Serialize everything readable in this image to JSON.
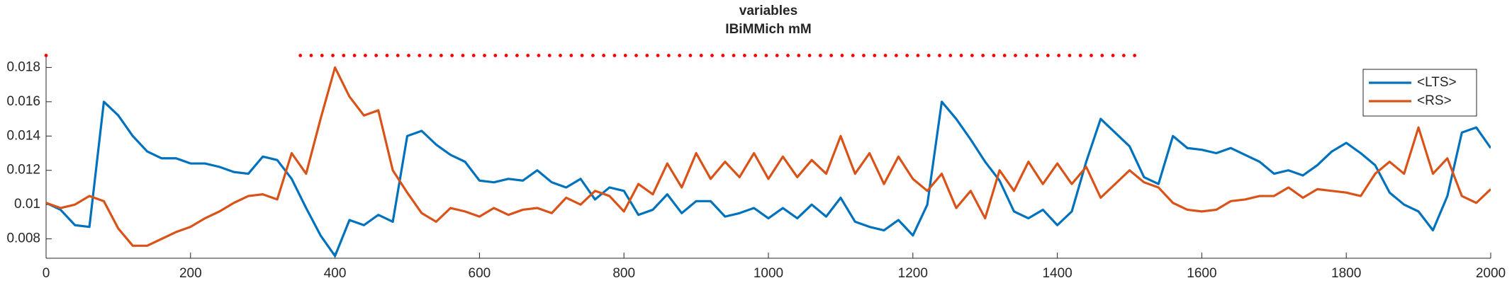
{
  "chart_data": {
    "type": "line",
    "title": "variables",
    "subtitle": "IBiMMich mM",
    "x": [
      0,
      20,
      40,
      60,
      80,
      100,
      120,
      140,
      160,
      180,
      200,
      220,
      240,
      260,
      280,
      300,
      320,
      340,
      360,
      380,
      400,
      420,
      440,
      460,
      480,
      500,
      520,
      540,
      560,
      580,
      600,
      620,
      640,
      660,
      680,
      700,
      720,
      740,
      760,
      780,
      800,
      820,
      840,
      860,
      880,
      900,
      920,
      940,
      960,
      980,
      1000,
      1020,
      1040,
      1060,
      1080,
      1100,
      1120,
      1140,
      1160,
      1180,
      1200,
      1220,
      1240,
      1260,
      1280,
      1300,
      1320,
      1340,
      1360,
      1380,
      1400,
      1420,
      1440,
      1460,
      1480,
      1500,
      1520,
      1540,
      1560,
      1580,
      1600,
      1620,
      1640,
      1660,
      1680,
      1700,
      1720,
      1740,
      1760,
      1780,
      1800,
      1820,
      1840,
      1860,
      1880,
      1900,
      1920,
      1940,
      1960,
      1980,
      2000
    ],
    "series": [
      {
        "name": "<LTS>",
        "color": "#0072bd",
        "values": [
          0.0101,
          0.0097,
          0.0088,
          0.0087,
          0.016,
          0.0152,
          0.014,
          0.0131,
          0.0127,
          0.0127,
          0.0124,
          0.0124,
          0.0122,
          0.0119,
          0.0118,
          0.0128,
          0.0126,
          0.0115,
          0.0098,
          0.0082,
          0.007,
          0.0091,
          0.0088,
          0.0094,
          0.009,
          0.014,
          0.0143,
          0.0135,
          0.0129,
          0.0125,
          0.0114,
          0.0113,
          0.0115,
          0.0114,
          0.012,
          0.0113,
          0.011,
          0.0115,
          0.0103,
          0.011,
          0.0108,
          0.0094,
          0.0097,
          0.0106,
          0.0095,
          0.0102,
          0.0102,
          0.0093,
          0.0095,
          0.0098,
          0.0092,
          0.0098,
          0.0092,
          0.01,
          0.0093,
          0.0104,
          0.009,
          0.0087,
          0.0085,
          0.0091,
          0.0082,
          0.01,
          0.016,
          0.015,
          0.0138,
          0.0125,
          0.0114,
          0.0096,
          0.0092,
          0.0097,
          0.0088,
          0.0096,
          0.0125,
          0.015,
          0.0142,
          0.0134,
          0.0116,
          0.0112,
          0.014,
          0.0133,
          0.0132,
          0.013,
          0.0133,
          0.0129,
          0.0125,
          0.0118,
          0.012,
          0.0117,
          0.0123,
          0.0131,
          0.0136,
          0.013,
          0.0123,
          0.0107,
          0.01,
          0.0096,
          0.0085,
          0.0105,
          0.0142,
          0.0145,
          0.0133
        ]
      },
      {
        "name": "<RS>",
        "color": "#d95319",
        "values": [
          0.0101,
          0.0098,
          0.01,
          0.0105,
          0.0102,
          0.0086,
          0.0076,
          0.0076,
          0.008,
          0.0084,
          0.0087,
          0.0092,
          0.0096,
          0.0101,
          0.0105,
          0.0106,
          0.0103,
          0.013,
          0.0118,
          0.015,
          0.018,
          0.0163,
          0.0152,
          0.0155,
          0.012,
          0.0107,
          0.0095,
          0.009,
          0.0098,
          0.0096,
          0.0093,
          0.0098,
          0.0094,
          0.0097,
          0.0098,
          0.0095,
          0.0104,
          0.01,
          0.0108,
          0.0105,
          0.0096,
          0.0112,
          0.0106,
          0.0124,
          0.011,
          0.013,
          0.0115,
          0.0125,
          0.0116,
          0.013,
          0.0115,
          0.0128,
          0.0116,
          0.0126,
          0.0118,
          0.014,
          0.0118,
          0.013,
          0.0112,
          0.0128,
          0.0115,
          0.0108,
          0.0118,
          0.0098,
          0.0108,
          0.0092,
          0.012,
          0.0108,
          0.0125,
          0.0112,
          0.0124,
          0.0112,
          0.0122,
          0.0104,
          0.0112,
          0.012,
          0.0113,
          0.011,
          0.0101,
          0.0097,
          0.0096,
          0.0097,
          0.0102,
          0.0103,
          0.0105,
          0.0105,
          0.011,
          0.0104,
          0.0109,
          0.0108,
          0.0107,
          0.0105,
          0.0118,
          0.0125,
          0.0118,
          0.0145,
          0.0118,
          0.0127,
          0.0105,
          0.0101,
          0.0109
        ]
      }
    ],
    "markers": {
      "color": "#ff0000",
      "y": 0.0187,
      "x": [
        0,
        352,
        367,
        382,
        397,
        412,
        427,
        442,
        457,
        472,
        487,
        502,
        517,
        532,
        547,
        562,
        577,
        592,
        607,
        622,
        637,
        652,
        667,
        682,
        697,
        712,
        727,
        742,
        757,
        772,
        787,
        802,
        817,
        832,
        847,
        862,
        877,
        892,
        907,
        922,
        937,
        952,
        967,
        982,
        997,
        1012,
        1027,
        1042,
        1057,
        1072,
        1087,
        1102,
        1117,
        1132,
        1147,
        1162,
        1177,
        1192,
        1207,
        1222,
        1237,
        1252,
        1267,
        1282,
        1297,
        1312,
        1327,
        1342,
        1357,
        1372,
        1387,
        1402,
        1417,
        1432,
        1447,
        1462,
        1477,
        1492,
        1507
      ]
    },
    "xlim": [
      0,
      2000
    ],
    "xticks": [
      0,
      200,
      400,
      600,
      800,
      1000,
      1200,
      1400,
      1600,
      1800,
      2000
    ],
    "ylim": [
      0.00687,
      0.0188
    ],
    "yticks": [
      0.008,
      0.01,
      0.012,
      0.014,
      0.016,
      0.018
    ],
    "grid": false,
    "legend": "northeast"
  }
}
